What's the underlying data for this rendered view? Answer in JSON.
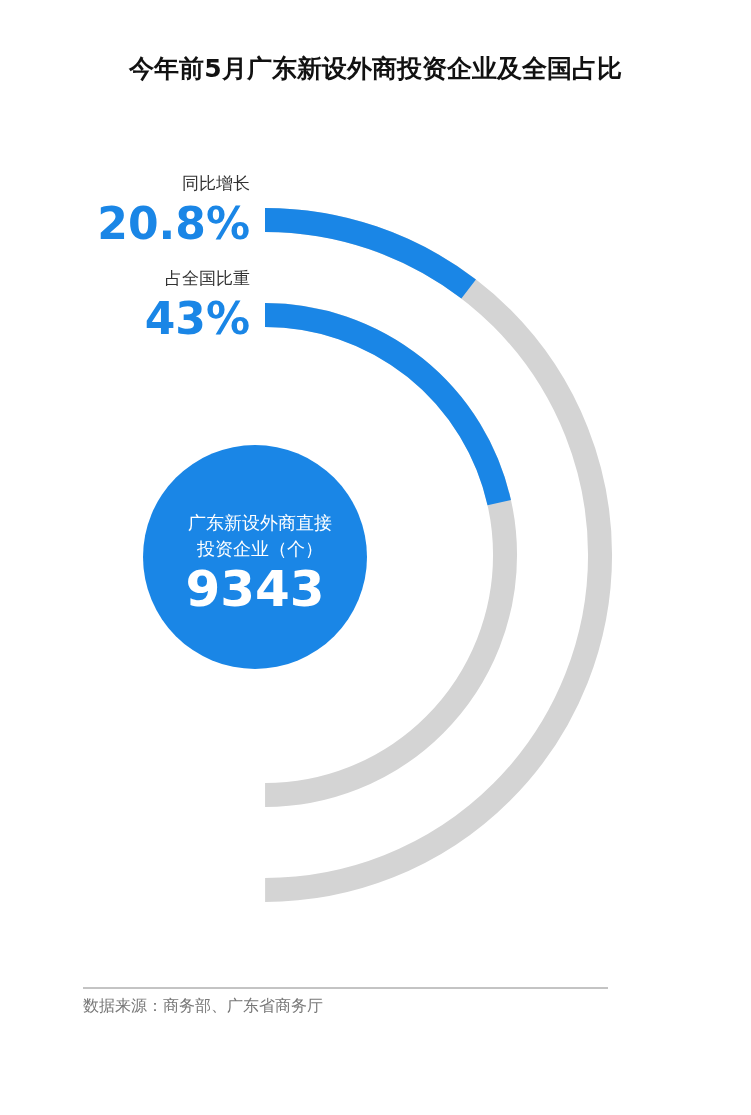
{
  "chart_data": {
    "type": "other",
    "title": "今年前5月广东新设外商投资企业及全国占比",
    "categories": [
      "同比增长",
      "占全国比重"
    ],
    "values": [
      20.8,
      43
    ],
    "value_labels": [
      "20.8%",
      "43%"
    ],
    "color": "#1a86e6",
    "annotations": [
      "广东新设外商直接投资企业（个）",
      "9343",
      "数据来源：商务部、广东省商务厅"
    ]
  }
}
